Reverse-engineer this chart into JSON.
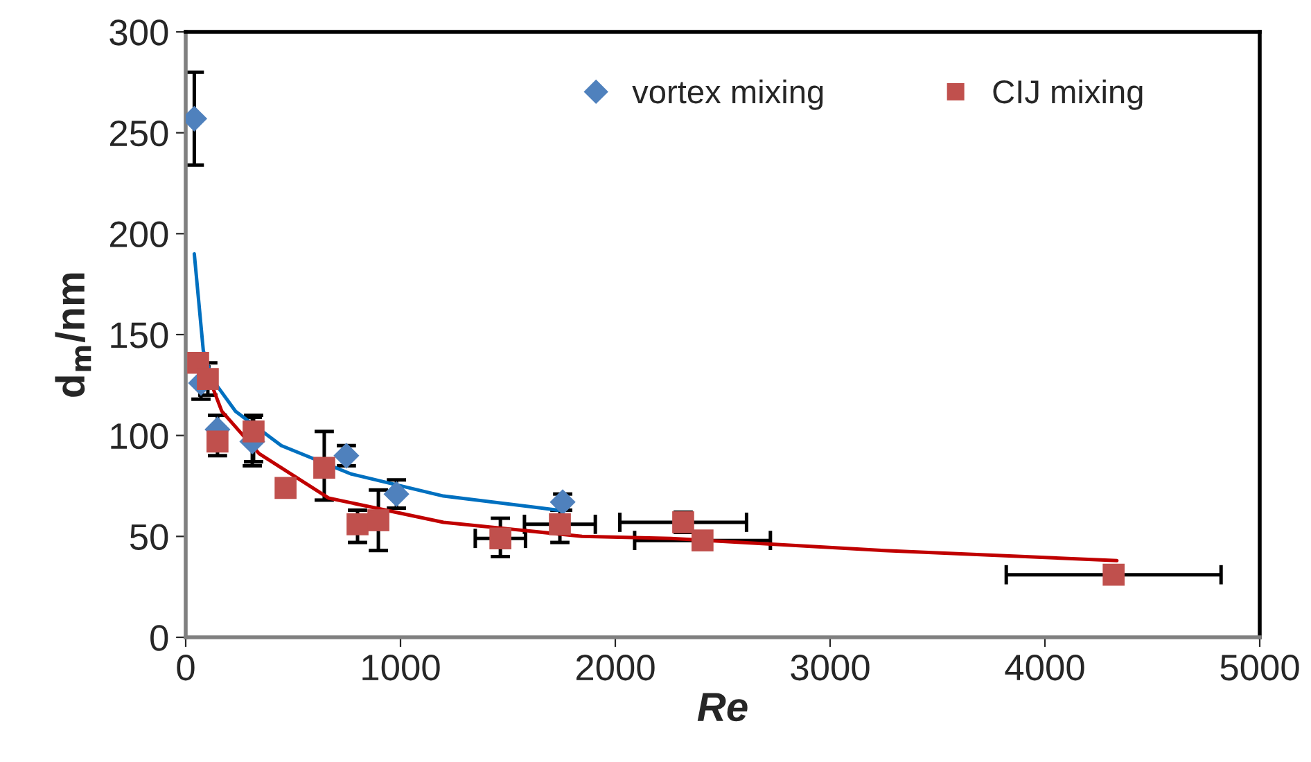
{
  "chart_data": {
    "type": "scatter",
    "xlabel": "Re",
    "ylabel": "d$_{m}$/nm",
    "xlim": [
      0,
      5000
    ],
    "xticks": [
      0,
      1000,
      2000,
      3000,
      4000,
      5000
    ],
    "ylim": [
      0,
      300
    ],
    "yticks": [
      0,
      50,
      100,
      150,
      200,
      250,
      300
    ],
    "grid": false,
    "legend": "top right",
    "series": [
      {
        "name": "vortex mixing",
        "marker": "diamond",
        "color": "#4f81bd",
        "x": [
          40,
          71,
          148,
          310,
          748,
          981,
          1755
        ],
        "values": [
          257,
          126,
          103,
          97,
          90,
          71,
          67
        ],
        "errors": [
          23,
          8,
          7,
          12,
          5,
          7,
          4
        ],
        "xerrors": [
          null,
          null,
          null,
          null,
          null,
          null,
          null
        ]
      },
      {
        "name": "CIJ mixing",
        "marker": "square",
        "color": "#c0504d",
        "x": [
          58,
          103,
          148,
          316,
          465,
          645,
          800,
          897,
          1465,
          1742,
          2316,
          2406,
          4320
        ],
        "values": [
          136,
          128,
          97,
          102,
          74,
          84,
          56,
          58,
          49,
          56,
          57,
          48,
          31
        ],
        "errors": [
          null,
          8,
          [
            90,
            110
          ],
          [
            87,
            110
          ],
          null,
          [
            68,
            102
          ],
          [
            47,
            63
          ],
          [
            43,
            73
          ],
          [
            40,
            59
          ],
          [
            47,
            63
          ],
          5,
          null,
          null
        ],
        "xerrors": [
          null,
          null,
          null,
          null,
          null,
          null,
          null,
          null,
          117,
          165,
          295,
          316,
          500
        ]
      },
      {
        "type": "line",
        "marker": "none",
        "line_style": "solid",
        "color": "#0070c0",
        "x": [
          40,
          82,
          123,
          232,
          445,
          768,
          1200,
          1735
        ],
        "values": [
          190,
          142,
          128,
          112,
          95,
          81,
          70,
          63
        ]
      },
      {
        "type": "line",
        "marker": "none",
        "line_style": "solid",
        "color": "#c00000",
        "x": [
          71,
          168,
          342,
          665,
          1200,
          1845,
          2258,
          3252,
          4335
        ],
        "values": [
          139,
          112,
          91,
          69,
          57,
          50,
          49,
          43,
          38
        ]
      }
    ]
  }
}
